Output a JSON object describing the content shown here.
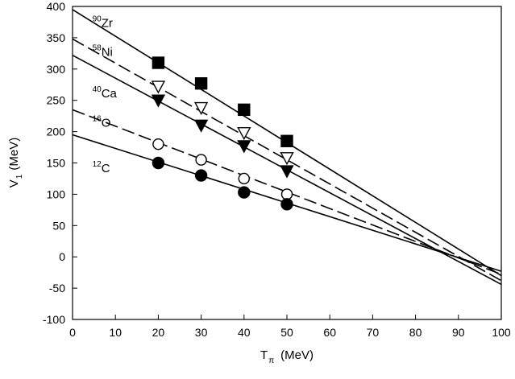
{
  "chart_data": {
    "type": "scatter",
    "title": "",
    "xlabel": "T",
    "xlabel_sub": "π",
    "xlabel_unit": "(MeV)",
    "ylabel": "V",
    "ylabel_sub": "1",
    "ylabel_unit": "(MeV)",
    "xlim": [
      0,
      100
    ],
    "ylim": [
      -100,
      400
    ],
    "xticks": [
      0,
      10,
      20,
      30,
      40,
      50,
      60,
      70,
      80,
      90,
      100
    ],
    "yticks": [
      -100,
      -50,
      0,
      50,
      100,
      150,
      200,
      250,
      300,
      350,
      400
    ],
    "grid": false,
    "series": [
      {
        "name": "Zr",
        "mass": "90",
        "marker": "filled-square",
        "line_style": "solid",
        "x": [
          20,
          30,
          40,
          50
        ],
        "y": [
          310,
          277,
          235,
          185
        ],
        "fit": {
          "x0": 0,
          "y0": 395,
          "x1": 100,
          "y1": -30
        }
      },
      {
        "name": "Ni",
        "mass": "58",
        "marker": "open-triangle-down",
        "line_style": "dashed",
        "x": [
          20,
          30,
          40,
          50
        ],
        "y": [
          272,
          238,
          198,
          158
        ],
        "fit": {
          "x0": 0,
          "y0": 348,
          "x1": 100,
          "y1": -38
        }
      },
      {
        "name": "Ca",
        "mass": "40",
        "marker": "filled-triangle-down",
        "line_style": "solid",
        "x": [
          20,
          30,
          40,
          50
        ],
        "y": [
          250,
          210,
          177,
          137
        ],
        "fit": {
          "x0": 0,
          "y0": 322,
          "x1": 100,
          "y1": -44
        }
      },
      {
        "name": "O",
        "mass": "16",
        "marker": "open-circle",
        "line_style": "dashed",
        "x": [
          20,
          30,
          40,
          50
        ],
        "y": [
          180,
          155,
          125,
          100
        ],
        "fit": {
          "x0": 0,
          "y0": 235,
          "x1": 100,
          "y1": -28
        }
      },
      {
        "name": "C",
        "mass": "12",
        "marker": "filled-circle",
        "line_style": "solid",
        "x": [
          20,
          30,
          40,
          50
        ],
        "y": [
          150,
          130,
          103,
          84
        ],
        "fit": {
          "x0": 0,
          "y0": 195,
          "x1": 100,
          "y1": -23
        }
      }
    ],
    "annotations": [
      {
        "mass": "90",
        "text": "Zr",
        "at": [
          5,
          367
        ]
      },
      {
        "mass": "58",
        "text": "Ni",
        "at": [
          5,
          321
        ]
      },
      {
        "mass": "40",
        "text": "Ca",
        "at": [
          5,
          255
        ]
      },
      {
        "mass": "16",
        "text": "O",
        "at": [
          5,
          208
        ]
      },
      {
        "mass": "12",
        "text": "C",
        "at": [
          5,
          135
        ]
      }
    ]
  }
}
